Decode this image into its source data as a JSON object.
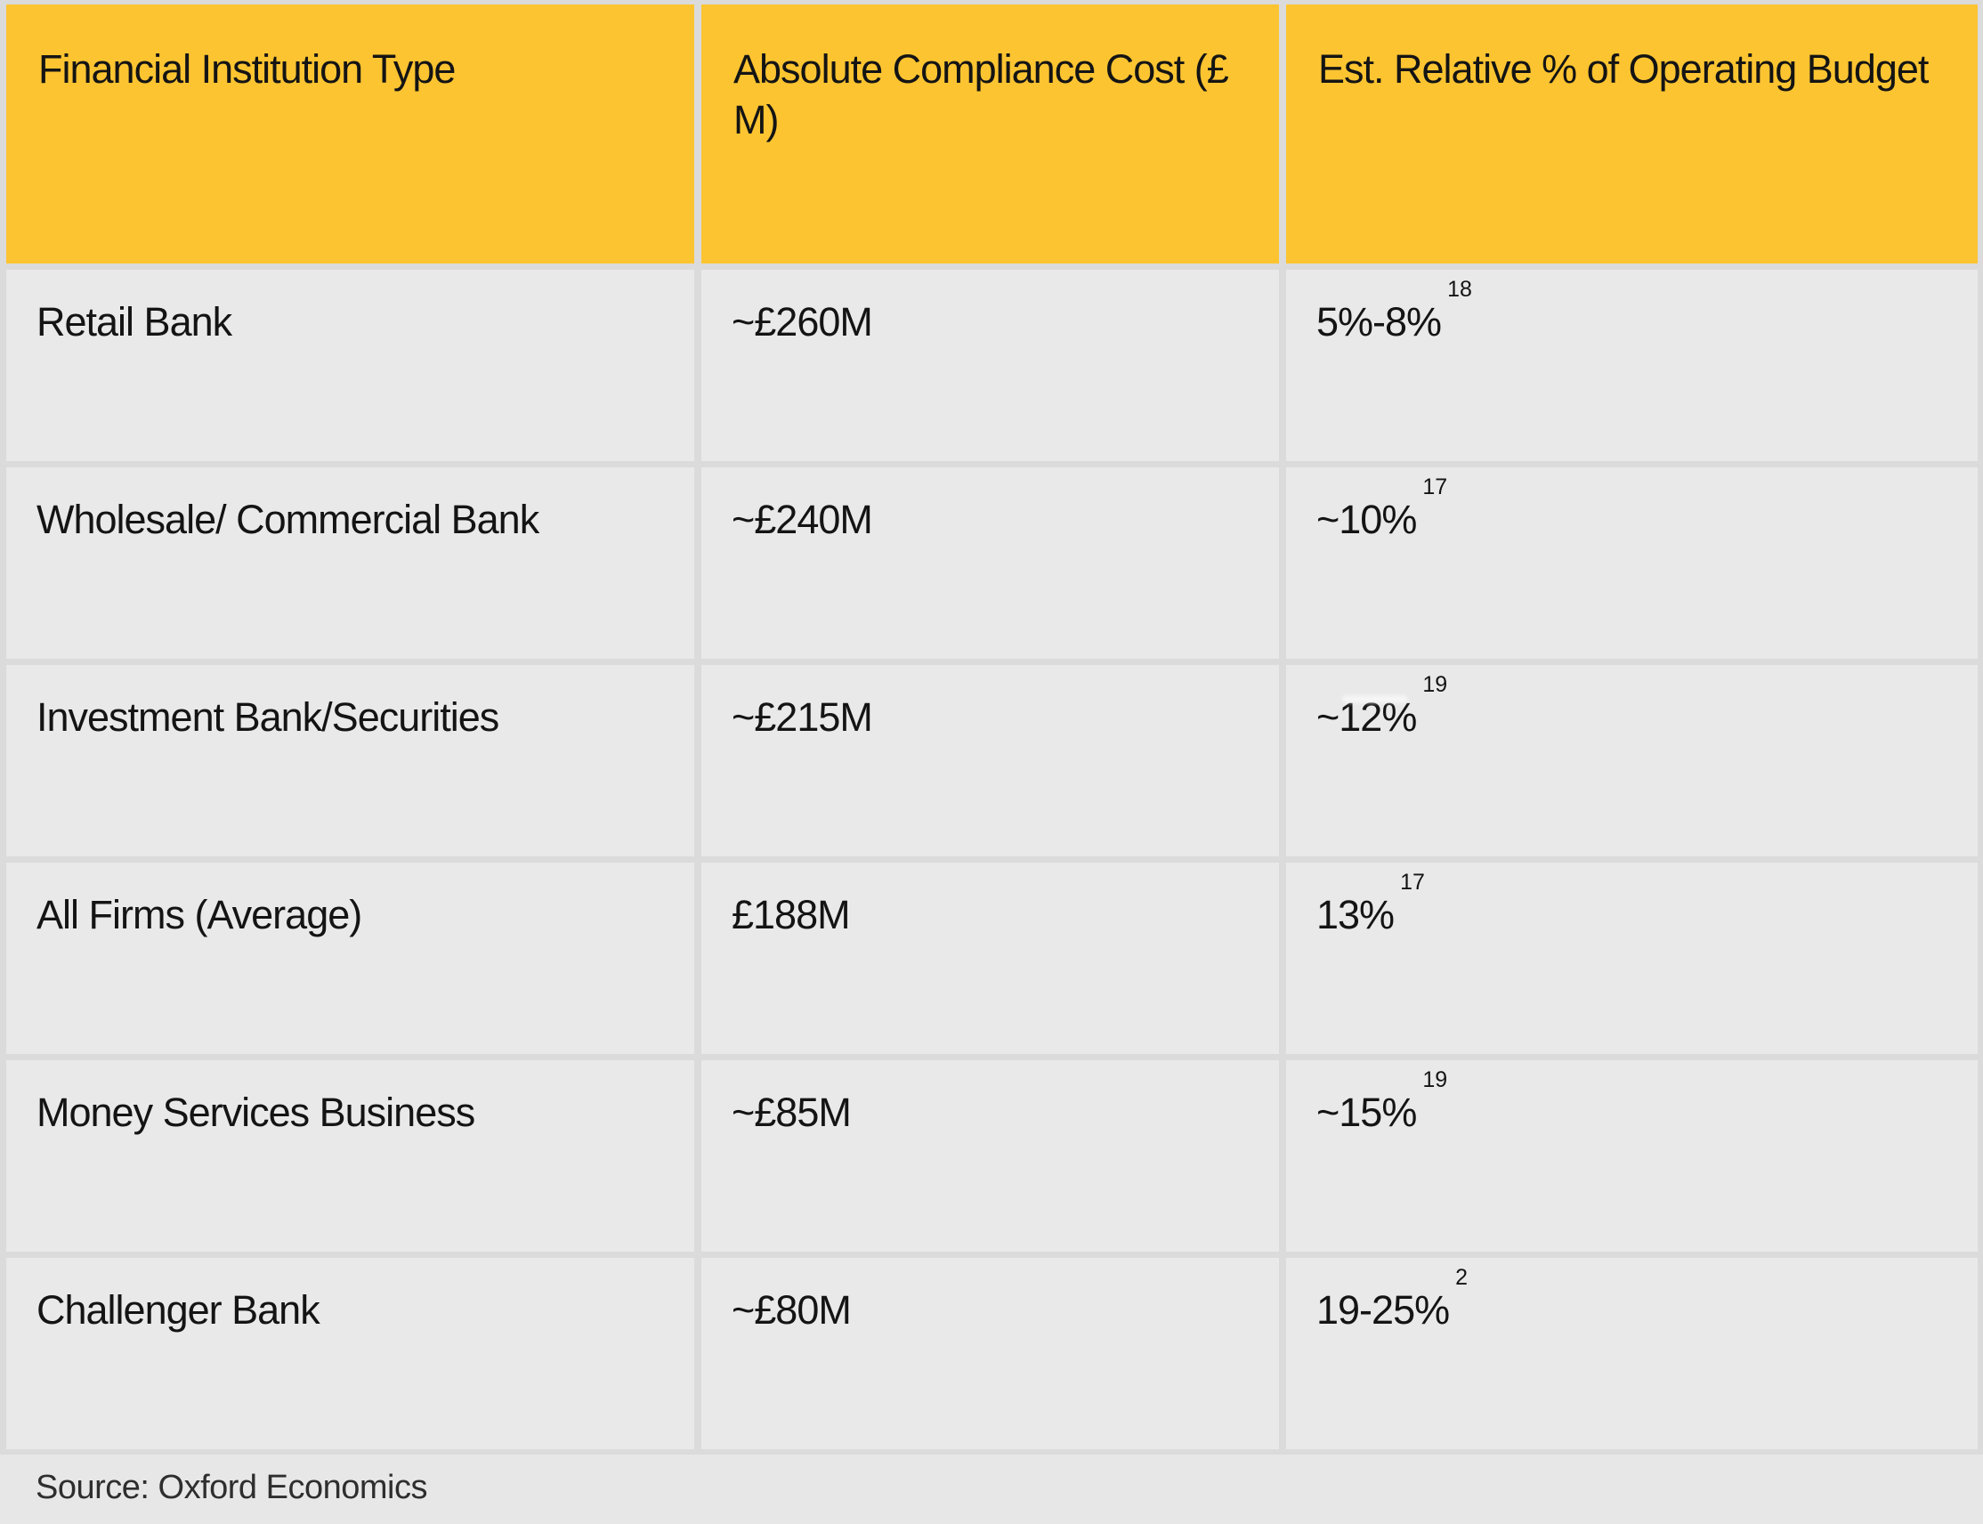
{
  "chart_data": {
    "type": "table",
    "columns": [
      "Financial Institution Type",
      "Absolute Compliance Cost (£ M)",
      "Est. Relative % of Operating Budget"
    ],
    "rows": [
      {
        "institution": "Retail Bank",
        "cost": "~£260M",
        "budget": "5%-8%",
        "footnote": "18"
      },
      {
        "institution": "Wholesale/ Commercial Bank",
        "cost": "~£240M",
        "budget": "~10%",
        "footnote": "17"
      },
      {
        "institution": "Investment Bank/Securities",
        "cost": "~£215M",
        "budget": "~12%",
        "footnote": "19"
      },
      {
        "institution": "All Firms (Average)",
        "cost": "£188M",
        "budget": "13%",
        "footnote": "17"
      },
      {
        "institution": "Money Services Business",
        "cost": "~£85M",
        "budget": "~15%",
        "footnote": "19"
      },
      {
        "institution": "Challenger Bank",
        "cost": "~£80M",
        "budget": "19-25%",
        "footnote": "2"
      }
    ],
    "source": "Source: Oxford Economics"
  },
  "colors": {
    "header_bg": "#FCC431",
    "cell_bg": "#E9E9E9",
    "page_bg": "#DBDBDB",
    "text": "#141414",
    "source_text": "#2E2E2E"
  }
}
